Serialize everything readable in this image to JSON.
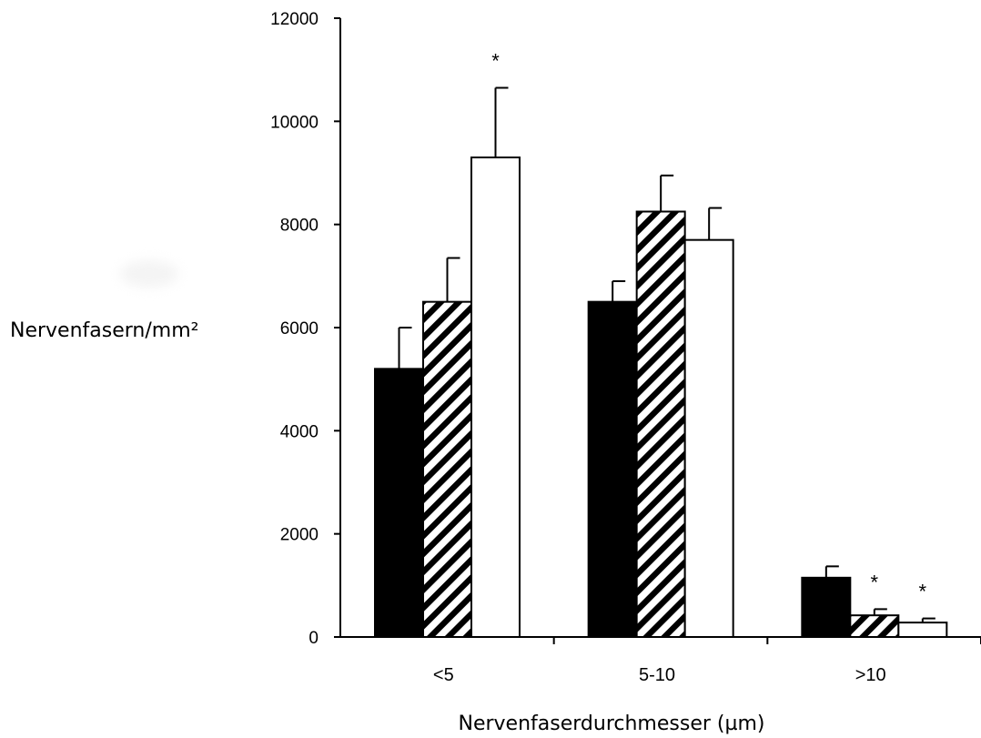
{
  "chart_data": {
    "type": "bar",
    "xlabel": "Nervenfaserdurchmesser (µm)",
    "ylabel": "Nervenfasern/mm²",
    "categories": [
      "<5",
      "5-10",
      ">10"
    ],
    "ylim": [
      0,
      12000
    ],
    "yticks": [
      0,
      2000,
      4000,
      6000,
      8000,
      10000,
      12000
    ],
    "grid": false,
    "legend": "none",
    "series": [
      {
        "fill": "solid",
        "color": "#000000",
        "values": [
          5200,
          6500,
          1150
        ],
        "errors": [
          800,
          400,
          220
        ],
        "significant": [
          false,
          false,
          false
        ]
      },
      {
        "fill": "hatched",
        "color": "#000000",
        "values": [
          6500,
          8250,
          420
        ],
        "errors": [
          850,
          700,
          120
        ],
        "significant": [
          false,
          false,
          true
        ]
      },
      {
        "fill": "open",
        "color": "#ffffff",
        "values": [
          9300,
          7700,
          280
        ],
        "errors": [
          1350,
          620,
          80
        ],
        "significant": [
          true,
          false,
          true
        ]
      }
    ],
    "significance_marker": "*"
  }
}
